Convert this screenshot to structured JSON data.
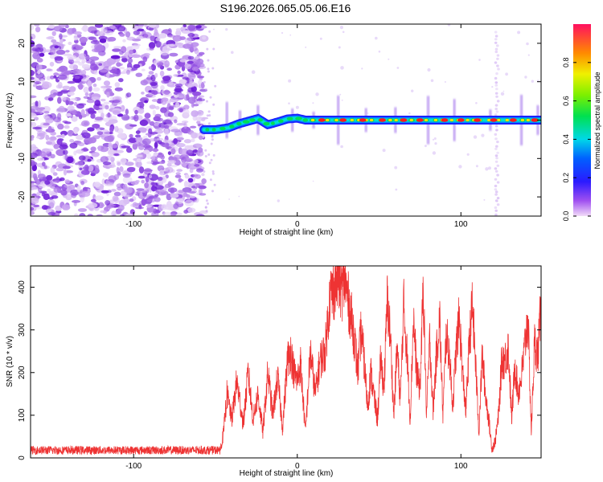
{
  "chart_data": [
    {
      "type": "heatmap",
      "title": "S196.2026.065.05.06.E16",
      "xlabel": "Height of straight line (km)",
      "ylabel": "Frequency (Hz)",
      "xlim": [
        -163,
        149
      ],
      "ylim": [
        -25,
        25
      ],
      "xticks": [
        -100,
        0,
        100
      ],
      "yticks": [
        -20,
        -10,
        0,
        10,
        20
      ],
      "noise_region_x": [
        -163,
        -57
      ],
      "ridge": {
        "x": [
          -57,
          -50,
          -42,
          -36,
          -30,
          -24,
          -18,
          -12,
          -6,
          0,
          5,
          149
        ],
        "y": [
          -2.5,
          -2.5,
          -2.0,
          -1.0,
          -0.3,
          0.4,
          -1.2,
          -0.5,
          0.3,
          0.5,
          0.0,
          0.0
        ]
      },
      "ridge_peaks_x": [
        15,
        28,
        40,
        52,
        65,
        75,
        90,
        100,
        110,
        120,
        132,
        145
      ],
      "spike_columns_x": [
        -43,
        -35,
        -24,
        -3,
        10,
        25,
        42,
        60,
        80,
        96,
        118,
        137,
        147
      ],
      "artifact_line_x": [
        122
      ],
      "colorbar": {
        "label": "Normalized spectral amplitude",
        "range": [
          0,
          1
        ],
        "ticks": [
          0.0,
          0.2,
          0.4,
          0.6,
          0.8
        ],
        "tick_labels": [
          "0.0",
          "0.2",
          "0.4",
          "0.6",
          "0.8"
        ]
      },
      "colors": {
        "noise": "#8a2be2",
        "ridge_low": "#1a22ff",
        "ridge_mid": "#00dd55",
        "ridge_high": "#ffe000",
        "ridge_peak": "#ff1a1a"
      }
    },
    {
      "type": "line",
      "xlabel": "Height of straight line (km)",
      "ylabel": "SNR (10 * v/v)",
      "xlim": [
        -163,
        149
      ],
      "ylim": [
        0,
        450
      ],
      "xticks": [
        -100,
        0,
        100
      ],
      "yticks": [
        0,
        100,
        200,
        300,
        400
      ],
      "line_color": "#ee3333",
      "envelope": {
        "x": [
          -163,
          -47,
          -45,
          -43,
          -40,
          -37,
          -33,
          -30,
          -27,
          -24,
          -21,
          -18,
          -15,
          -12,
          -9,
          -6,
          -4,
          -2,
          0,
          2,
          5,
          8,
          11,
          14,
          17,
          20,
          23,
          25,
          27,
          29,
          31,
          33,
          35,
          37,
          39,
          41,
          43,
          45,
          47,
          49,
          51,
          53,
          55,
          57,
          59,
          61,
          63,
          65,
          67,
          69,
          71,
          73,
          75,
          77,
          79,
          81,
          83,
          85,
          87,
          89,
          91,
          93,
          95,
          97,
          99,
          101,
          103,
          105,
          107,
          109,
          111,
          113,
          115,
          117,
          119,
          121,
          123,
          125,
          127,
          129,
          131,
          133,
          135,
          137,
          139,
          141,
          143,
          145,
          147,
          149
        ],
        "y": [
          20,
          20,
          60,
          150,
          90,
          180,
          80,
          200,
          90,
          150,
          60,
          200,
          100,
          190,
          70,
          230,
          250,
          200,
          180,
          220,
          60,
          250,
          150,
          230,
          250,
          380,
          400,
          430,
          390,
          420,
          370,
          330,
          280,
          200,
          300,
          220,
          120,
          200,
          140,
          90,
          230,
          160,
          370,
          280,
          100,
          260,
          130,
          360,
          250,
          90,
          330,
          200,
          160,
          400,
          100,
          280,
          110,
          240,
          330,
          100,
          290,
          240,
          120,
          250,
          330,
          200,
          110,
          260,
          360,
          220,
          60,
          240,
          150,
          90,
          20,
          40,
          100,
          230,
          230,
          260,
          90,
          220,
          150,
          190,
          260,
          330,
          60,
          270,
          240,
          360
        ]
      }
    }
  ]
}
